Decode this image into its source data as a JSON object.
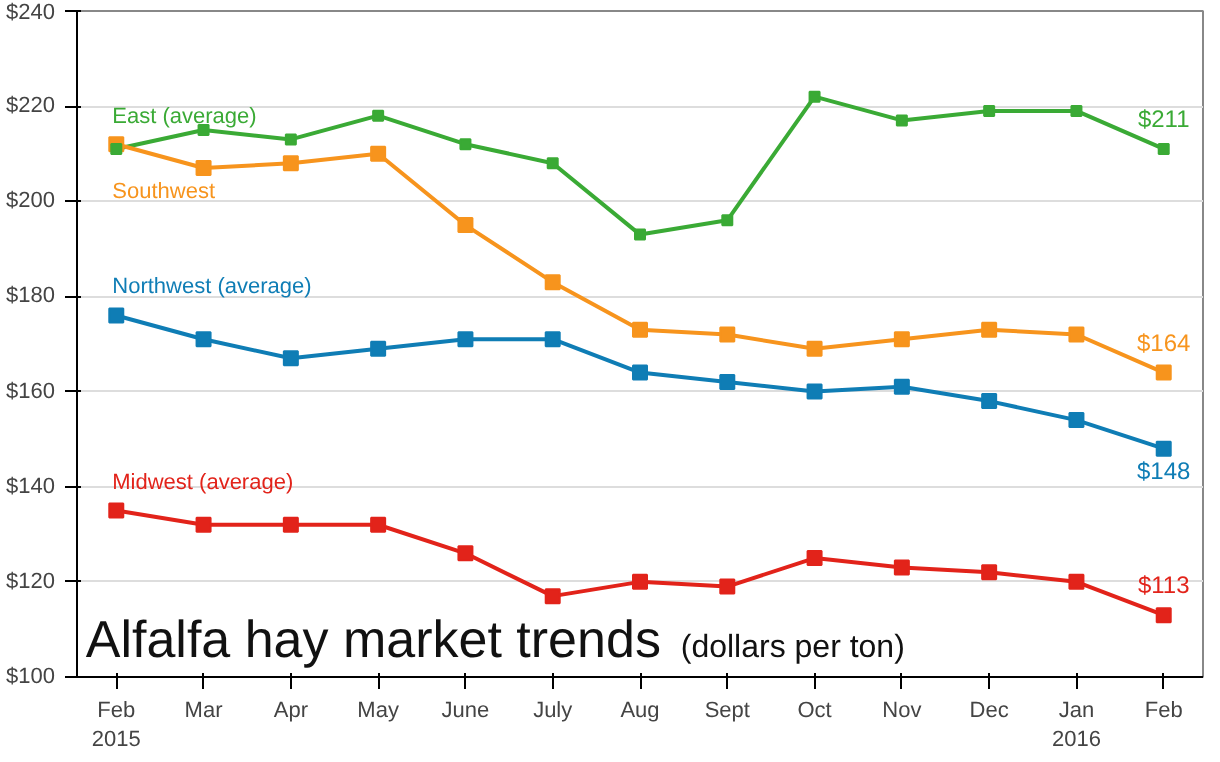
{
  "chart_data": {
    "type": "line",
    "title": "Alfalfa hay market trends",
    "subtitle": "(dollars per ton)",
    "categories": [
      "Feb\n2015",
      "Mar",
      "Apr",
      "May",
      "June",
      "July",
      "Aug",
      "Sept",
      "Oct",
      "Nov",
      "Dec",
      "Jan\n2016",
      "Feb"
    ],
    "ylim": [
      100,
      240
    ],
    "yticks": [
      {
        "value": 100,
        "label": "$100"
      },
      {
        "value": 120,
        "label": "$120"
      },
      {
        "value": 140,
        "label": "$140"
      },
      {
        "value": 160,
        "label": "$160"
      },
      {
        "value": 180,
        "label": "$180"
      },
      {
        "value": 200,
        "label": "$200"
      },
      {
        "value": 220,
        "label": "$220"
      },
      {
        "value": 240,
        "label": "$240"
      }
    ],
    "grid": "y",
    "legend": false,
    "marker": "square",
    "line_style": "solid",
    "series": [
      {
        "name": "East (average)",
        "color": "#3aaa35",
        "values": [
          211,
          215,
          213,
          218,
          212,
          208,
          193,
          196,
          222,
          217,
          219,
          219,
          211
        ],
        "value_labels": [
          null,
          null,
          null,
          null,
          null,
          null,
          null,
          null,
          null,
          null,
          null,
          null,
          "$211"
        ]
      },
      {
        "name": "Southwest",
        "color": "#f7941d",
        "values": [
          212,
          207,
          208,
          210,
          195,
          183,
          173,
          172,
          169,
          171,
          173,
          172,
          164
        ],
        "value_labels": [
          null,
          null,
          null,
          null,
          null,
          null,
          null,
          null,
          null,
          null,
          null,
          null,
          "$164"
        ]
      },
      {
        "name": "Northwest (average)",
        "color": "#0f7db5",
        "values": [
          176,
          171,
          167,
          169,
          171,
          171,
          164,
          162,
          160,
          161,
          158,
          154,
          148
        ],
        "value_labels": [
          null,
          null,
          null,
          null,
          null,
          null,
          null,
          null,
          null,
          null,
          null,
          null,
          "$148"
        ]
      },
      {
        "name": "Midwest (average)",
        "color": "#e2231a",
        "values": [
          135,
          132,
          132,
          132,
          126,
          117,
          120,
          119,
          125,
          123,
          122,
          120,
          113
        ],
        "value_labels": [
          null,
          null,
          null,
          null,
          null,
          null,
          null,
          null,
          null,
          null,
          null,
          null,
          "$113"
        ]
      }
    ]
  }
}
